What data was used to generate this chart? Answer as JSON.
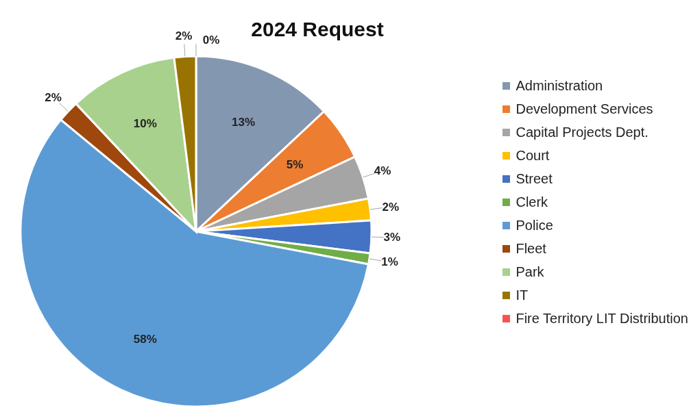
{
  "chart_data": {
    "type": "pie",
    "title": "2024 Request",
    "categories": [
      "Administration",
      "Development Services",
      "Capital Projects Dept.",
      "Court",
      "Street",
      "Clerk",
      "Police",
      "Fleet",
      "Park",
      "IT",
      "Fire Territory LIT Distribution"
    ],
    "values": [
      13,
      5,
      4,
      2,
      3,
      1,
      58,
      2,
      10,
      2,
      0
    ],
    "value_labels": [
      "13%",
      "5%",
      "4%",
      "2%",
      "3%",
      "1%",
      "58%",
      "2%",
      "10%",
      "2%",
      "0%"
    ],
    "colors": [
      "#8497b0",
      "#ed7d31",
      "#a5a5a5",
      "#ffc000",
      "#4472c4",
      "#70ad47",
      "#5b9bd5",
      "#9e480e",
      "#a9d18e",
      "#997300",
      "#ff5050"
    ],
    "legend": "right"
  }
}
